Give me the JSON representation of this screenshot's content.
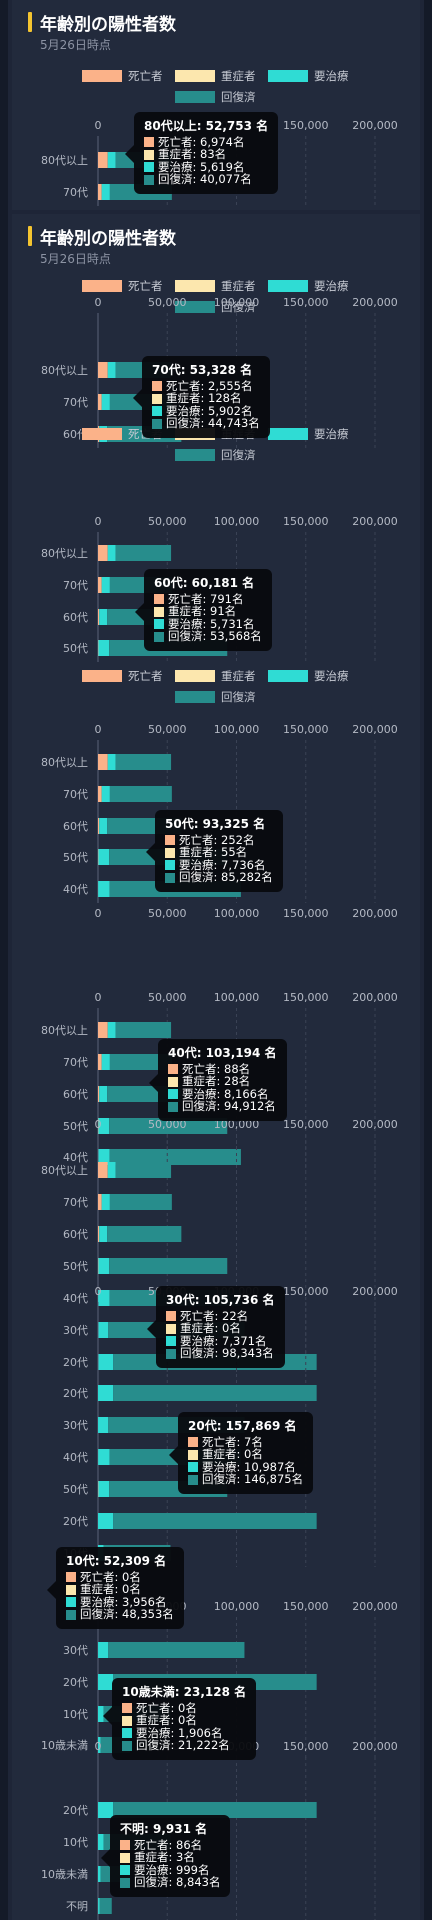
{
  "cards": [
    {
      "title": "年齢別の陽性者数",
      "subtitle": "5月26日時点"
    },
    {
      "title": "年齢別の陽性者数",
      "subtitle": "5月26日時点"
    }
  ],
  "legend_colors": {
    "死亡者": "#fbb289",
    "重症者": "#fce7ae",
    "要治療": "#2fdcd4",
    "回復済": "#278d8c"
  },
  "chart_data": {
    "type": "bar",
    "orientation": "horizontal",
    "stacked": true,
    "title": "年齢別の陽性者数",
    "subtitle": "5月26日時点",
    "xlim": [
      0,
      200000
    ],
    "xticks": [
      "0",
      "50,000",
      "100,000",
      "150,000",
      "200,000"
    ],
    "grid": true,
    "legend_position": "top",
    "categories": [
      "80代以上",
      "70代",
      "60代",
      "50代",
      "40代",
      "30代",
      "20代",
      "10代",
      "10歳未満",
      "不明"
    ],
    "series": [
      {
        "name": "死亡者",
        "values": [
          6974,
          2555,
          791,
          252,
          88,
          22,
          7,
          0,
          0,
          86
        ]
      },
      {
        "name": "重症者",
        "values": [
          83,
          128,
          91,
          55,
          28,
          0,
          0,
          0,
          0,
          3
        ]
      },
      {
        "name": "要治療",
        "values": [
          5619,
          5902,
          5731,
          7736,
          8166,
          7371,
          10987,
          3956,
          1906,
          999
        ]
      },
      {
        "name": "回復済",
        "values": [
          40077,
          44743,
          53568,
          85282,
          94912,
          98343,
          146875,
          48353,
          21222,
          8843
        ]
      }
    ],
    "totals": [
      52753,
      53328,
      60181,
      93325,
      103194,
      105736,
      157869,
      52309,
      23128,
      9931
    ],
    "tooltip_labels": [
      {
        "header": "80代以上: 52,753 名",
        "rows": [
          "死亡者: 6,974名",
          "重症者: 83名",
          "要治療: 5,619名",
          "回復済: 40,077名"
        ]
      },
      {
        "header": "70代: 53,328 名",
        "rows": [
          "死亡者: 2,555名",
          "重症者: 128名",
          "要治療: 5,902名",
          "回復済: 44,743名"
        ]
      },
      {
        "header": "60代: 60,181 名",
        "rows": [
          "死亡者: 791名",
          "重症者: 91名",
          "要治療: 5,731名",
          "回復済: 53,568名"
        ]
      },
      {
        "header": "50代: 93,325 名",
        "rows": [
          "死亡者: 252名",
          "重症者: 55名",
          "要治療: 7,736名",
          "回復済: 85,282名"
        ]
      },
      {
        "header": "40代: 103,194 名",
        "rows": [
          "死亡者: 88名",
          "重症者: 28名",
          "要治療: 8,166名",
          "回復済: 94,912名"
        ]
      },
      {
        "header": "30代: 105,736 名",
        "rows": [
          "死亡者: 22名",
          "重症者: 0名",
          "要治療: 7,371名",
          "回復済: 98,343名"
        ]
      },
      {
        "header": "20代: 157,869 名",
        "rows": [
          "死亡者: 7名",
          "重症者: 0名",
          "要治療: 10,987名",
          "回復済: 146,875名"
        ]
      },
      {
        "header": "10代: 52,309 名",
        "rows": [
          "死亡者: 0名",
          "重症者: 0名",
          "要治療: 3,956名",
          "回復済: 48,353名"
        ]
      },
      {
        "header": "10歳未満: 23,128 名",
        "rows": [
          "死亡者: 0名",
          "重症者: 0名",
          "要治療: 1,906名",
          "回復済: 21,222名"
        ]
      },
      {
        "header": "不明: 9,931 名",
        "rows": [
          "死亡者: 86名",
          "重症者: 3名",
          "要治療: 999名",
          "回復済: 8,843名"
        ]
      }
    ]
  }
}
